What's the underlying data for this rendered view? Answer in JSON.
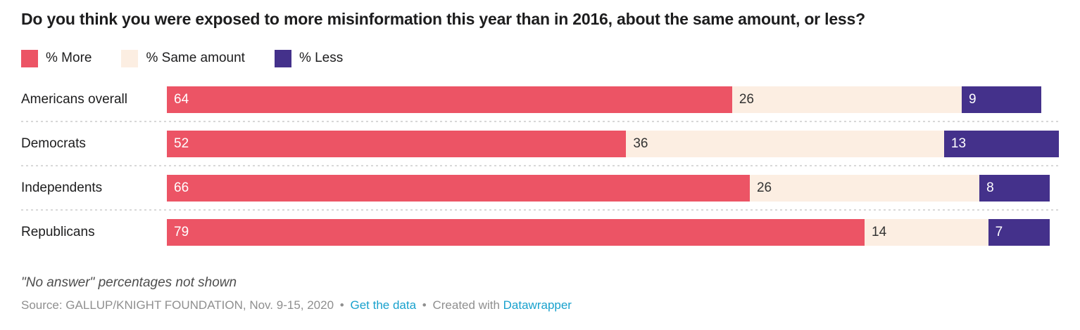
{
  "title": "Do you think you were exposed to more misinformation this year than in 2016, about the same amount, or less?",
  "legend": [
    {
      "label": "% More",
      "color": "#EC5465"
    },
    {
      "label": "% Same amount",
      "color": "#FCEEE2"
    },
    {
      "label": "% Less",
      "color": "#44318B"
    }
  ],
  "chart_data": {
    "type": "bar",
    "stacked": true,
    "orientation": "horizontal",
    "title": "Do you think you were exposed to more misinformation this year than in 2016, about the same amount, or less?",
    "categories": [
      "Americans overall",
      "Democrats",
      "Independents",
      "Republicans"
    ],
    "series": [
      {
        "name": "% More",
        "color": "#EC5465",
        "label_color": "#ffffff",
        "values": [
          64,
          52,
          66,
          79
        ]
      },
      {
        "name": "% Same amount",
        "color": "#FCEEE2",
        "label_color": "#333333",
        "values": [
          26,
          36,
          26,
          14
        ]
      },
      {
        "name": "% Less",
        "color": "#44318B",
        "label_color": "#ffffff",
        "values": [
          9,
          13,
          8,
          7
        ]
      }
    ],
    "xlim": [
      0,
      101
    ],
    "value_labels_shown": true,
    "legend_position": "top",
    "grid": false
  },
  "footer": {
    "note": "\"No answer\" percentages not shown",
    "source": "Source: GALLUP/KNIGHT FOUNDATION, Nov. 9-15, 2020",
    "bullet": "•",
    "get_data_label": "Get the data",
    "created_with": "Created with",
    "datawrapper_label": "Datawrapper",
    "link_color": "#18A1CD"
  }
}
